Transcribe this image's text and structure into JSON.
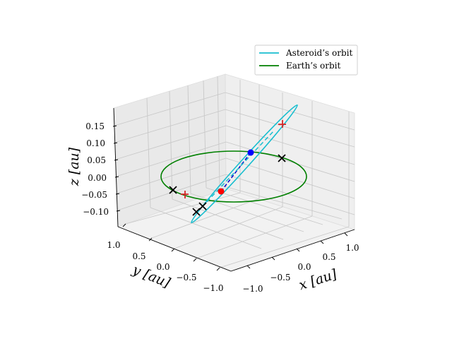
{
  "chart_data": {
    "type": "line3d",
    "xlabel": "x [au]",
    "ylabel": "y [au]",
    "zlabel": "z [au]",
    "x_ticks": [
      "−1.0",
      "−0.5",
      "0.0",
      "0.5",
      "1.0"
    ],
    "y_ticks": [
      "1.0",
      "0.5",
      "0.0",
      "−0.5",
      "−1.0"
    ],
    "z_ticks": [
      "0.15",
      "0.10",
      "0.05",
      "0.00",
      "−0.05",
      "−0.10"
    ],
    "xlim": [
      -1.0,
      1.0
    ],
    "ylim": [
      -1.0,
      1.0
    ],
    "zlim": [
      -0.12,
      0.18
    ],
    "grid": true,
    "legend_position": "top-right",
    "series": [
      {
        "name": "Asteroid’s orbit",
        "color": "#17becf",
        "style": "solid"
      },
      {
        "name": "Earth’s orbit",
        "color": "#008000",
        "style": "solid"
      }
    ],
    "markers": [
      {
        "type": "dot",
        "color": "#0000ff"
      },
      {
        "type": "dot",
        "color": "#ff0000"
      },
      {
        "type": "plus",
        "color": "#d62728"
      },
      {
        "type": "plus",
        "color": "#d62728"
      },
      {
        "type": "x",
        "color": "#000000"
      },
      {
        "type": "x",
        "color": "#000000"
      },
      {
        "type": "x",
        "color": "#000000"
      },
      {
        "type": "x",
        "color": "#000000"
      }
    ],
    "connector_color": "#0000cc"
  }
}
